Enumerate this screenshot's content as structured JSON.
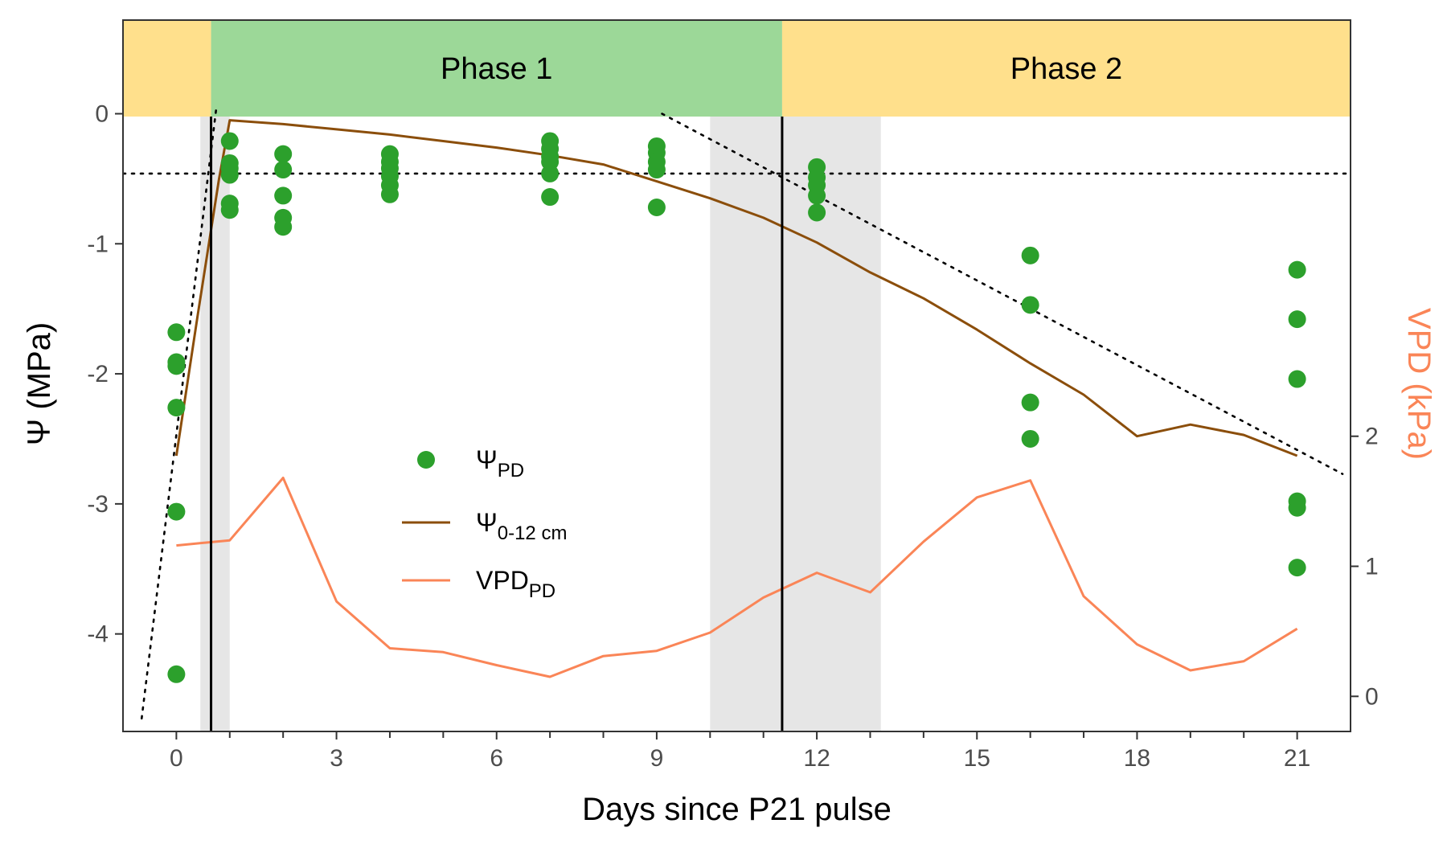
{
  "chart_data": {
    "type": "scatter",
    "xlabel": "Days since P21 pulse",
    "ylabel": "Ψ (MPa)",
    "y2label": "VPD (kPa)",
    "xlim": [
      -1,
      22
    ],
    "ylim": [
      -4.75,
      0.72
    ],
    "y2lim": [
      -0.27,
      5.2
    ],
    "x_ticks": [
      0,
      3,
      6,
      9,
      12,
      15,
      18,
      21
    ],
    "x_minor_ticks": [
      1,
      2,
      4,
      5,
      7,
      8,
      10,
      11,
      13,
      14,
      16,
      17,
      19,
      20
    ],
    "y_ticks": [
      0,
      -1,
      -2,
      -3,
      -4
    ],
    "y_tick_labels": [
      "0",
      "-1",
      "-2",
      "-3",
      "-4"
    ],
    "y2_ticks": [
      0,
      1,
      2
    ],
    "y2_tick_labels": [
      "0",
      "1",
      "2"
    ],
    "x_tick_labels": [
      "0",
      "3",
      "6",
      "9",
      "12",
      "15",
      "18",
      "21"
    ],
    "grid": false,
    "phase_bands": [
      {
        "label": "",
        "x0": -1,
        "x1": 0.65,
        "color": "#FFE08C"
      },
      {
        "label": "Phase 1",
        "x0": 0.65,
        "x1": 11.35,
        "color": "#9CD898"
      },
      {
        "label": "Phase 2",
        "x0": 11.35,
        "x1": 22,
        "color": "#FFE08C"
      }
    ],
    "shaded_regions": [
      {
        "x0": 0.45,
        "x1": 1.0
      },
      {
        "x0": 10.0,
        "x1": 13.2
      }
    ],
    "vertical_lines": [
      0.65,
      11.35
    ],
    "horizontal_dotted_line": -0.46,
    "dotted_lines": [
      {
        "x": [
          -0.65,
          0.75
        ],
        "y": [
          -4.65,
          0.05
        ]
      },
      {
        "x": [
          9.1,
          21.85
        ],
        "y": [
          0.0,
          -2.77
        ]
      }
    ],
    "series": [
      {
        "name": "ΨPD",
        "type": "scatter",
        "color": "#2CA02C",
        "points": [
          [
            0,
            -1.68
          ],
          [
            0,
            -1.91
          ],
          [
            0,
            -1.94
          ],
          [
            0,
            -2.26
          ],
          [
            0,
            -3.06
          ],
          [
            0,
            -4.31
          ],
          [
            1,
            -0.21
          ],
          [
            1,
            -0.38
          ],
          [
            1,
            -0.42
          ],
          [
            1,
            -0.47
          ],
          [
            1,
            -0.69
          ],
          [
            1,
            -0.74
          ],
          [
            2,
            -0.31
          ],
          [
            2,
            -0.43
          ],
          [
            2,
            -0.63
          ],
          [
            2,
            -0.8
          ],
          [
            2,
            -0.87
          ],
          [
            4,
            -0.31
          ],
          [
            4,
            -0.37
          ],
          [
            4,
            -0.42
          ],
          [
            4,
            -0.48
          ],
          [
            4,
            -0.55
          ],
          [
            4,
            -0.62
          ],
          [
            7,
            -0.21
          ],
          [
            7,
            -0.27
          ],
          [
            7,
            -0.33
          ],
          [
            7,
            -0.37
          ],
          [
            7,
            -0.46
          ],
          [
            7,
            -0.64
          ],
          [
            9,
            -0.25
          ],
          [
            9,
            -0.3
          ],
          [
            9,
            -0.37
          ],
          [
            9,
            -0.43
          ],
          [
            9,
            -0.72
          ],
          [
            12,
            -0.41
          ],
          [
            12,
            -0.49
          ],
          [
            12,
            -0.55
          ],
          [
            12,
            -0.63
          ],
          [
            12,
            -0.76
          ],
          [
            16,
            -1.09
          ],
          [
            16,
            -1.47
          ],
          [
            16,
            -2.22
          ],
          [
            16,
            -2.5
          ],
          [
            21,
            -1.2
          ],
          [
            21,
            -1.58
          ],
          [
            21,
            -2.04
          ],
          [
            21,
            -2.98
          ],
          [
            21,
            -3.03
          ],
          [
            21,
            -3.49
          ]
        ]
      },
      {
        "name": "Ψ0-12 cm",
        "type": "line",
        "color": "#8B4E0B",
        "x": [
          0,
          0.4,
          0.8,
          1,
          2,
          3,
          4,
          5,
          6,
          7,
          8,
          9,
          10,
          11,
          12,
          13,
          14,
          15,
          16,
          17,
          18,
          19,
          20,
          21
        ],
        "y": [
          -2.63,
          -1.55,
          -0.5,
          -0.05,
          -0.08,
          -0.12,
          -0.16,
          -0.21,
          -0.26,
          -0.32,
          -0.39,
          -0.52,
          -0.65,
          -0.8,
          -0.99,
          -1.22,
          -1.42,
          -1.66,
          -1.92,
          -2.16,
          -2.48,
          -2.39,
          -2.47,
          -2.63
        ]
      },
      {
        "name": "VPDPD",
        "type": "line",
        "axis": "right",
        "color": "#FA8557",
        "x": [
          0,
          1,
          2,
          3,
          4,
          5,
          6,
          7,
          8,
          9,
          10,
          11,
          12,
          13,
          14,
          15,
          16,
          17,
          18,
          19,
          20,
          21
        ],
        "y": [
          1.16,
          1.2,
          1.68,
          0.73,
          0.37,
          0.34,
          0.24,
          0.15,
          0.31,
          0.35,
          0.49,
          0.76,
          0.95,
          0.8,
          1.19,
          1.53,
          1.66,
          0.77,
          0.4,
          0.2,
          0.27,
          0.52
        ]
      }
    ],
    "legend": {
      "position": "center-left",
      "entries": [
        {
          "base": "Ψ",
          "sub": "PD"
        },
        {
          "base": "Ψ",
          "sub": "0-12 cm"
        },
        {
          "base": "VPD",
          "sub": "PD"
        }
      ]
    },
    "colors": {
      "points": "#2CA02C",
      "soil_line": "#8B4E0B",
      "vpd_line": "#FA8557",
      "shade": "#E6E6E6",
      "phase1": "#9CD898",
      "phase2": "#FFE08C",
      "axis_text": "#4D4D4D",
      "vpd_axis_title": "#FA8557"
    }
  }
}
